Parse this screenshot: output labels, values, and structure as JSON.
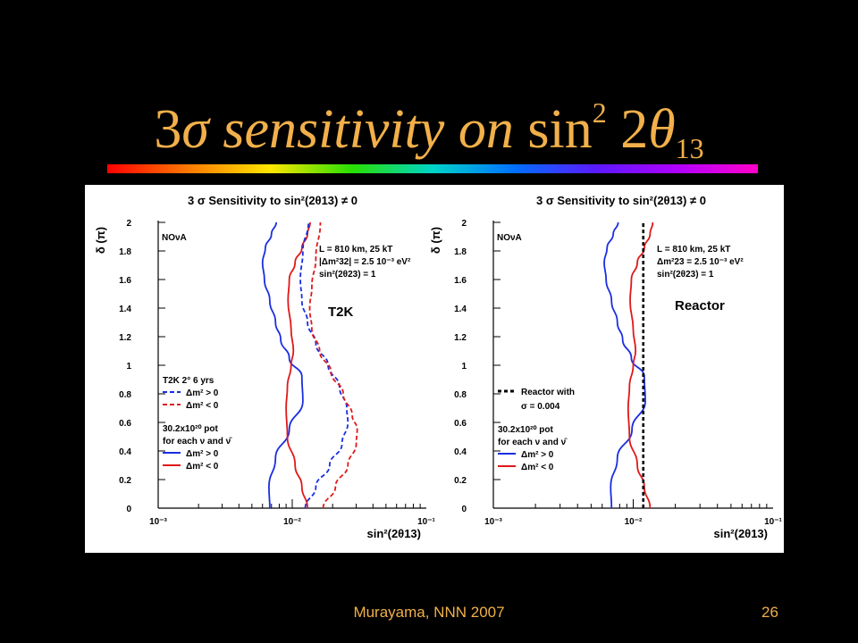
{
  "slide": {
    "title_prefix": "3",
    "title_sigma": "σ",
    "title_italic": " sensitivity on ",
    "title_sin": "sin",
    "title_sup": "2",
    "title_two": " 2",
    "title_theta": "θ",
    "title_sub": "13",
    "footer_credit": "Murayama, NNN 2007",
    "page_number": "26"
  },
  "colors": {
    "background": "#000000",
    "title": "#f2b04a",
    "blue": "#1a2ee0",
    "red": "#e01818"
  },
  "chart_data": [
    {
      "type": "line",
      "title": "3 σ Sensitivity to sin²(2θ13) ≠ 0",
      "xlabel": "sin²(2θ13)",
      "ylabel": "δ (π)",
      "xscale": "log",
      "xlim": [
        0.001,
        0.1
      ],
      "ylim": [
        0,
        2
      ],
      "xticks": [
        "10⁻³",
        "10⁻²",
        "10⁻¹"
      ],
      "yticks": [
        "0",
        "0.2",
        "0.4",
        "0.6",
        "0.8",
        "1",
        "1.2",
        "1.4",
        "1.6",
        "1.8",
        "2"
      ],
      "experiment_label": "NOνA",
      "params": [
        "L = 810 km, 25 kT",
        "|Δm²32| = 2.5 10⁻³ eV²",
        "sin²(2θ23) = 1"
      ],
      "annotation": "T2K",
      "legend": [
        {
          "heading": "T2K 2° 6 yrs",
          "entries": [
            {
              "label": "Δm² > 0",
              "color": "#1a2ee0",
              "style": "dashed"
            },
            {
              "label": "Δm² < 0",
              "color": "#e01818",
              "style": "dashed"
            }
          ]
        },
        {
          "heading": "30.2x10²⁰ pot",
          "subheading": "for each ν and ν̄",
          "entries": [
            {
              "label": "Δm² > 0",
              "color": "#1a2ee0",
              "style": "solid"
            },
            {
              "label": "Δm² < 0",
              "color": "#e01818",
              "style": "solid"
            }
          ]
        }
      ],
      "series": [
        {
          "name": "NOνA Δm² > 0",
          "color": "#1a2ee0",
          "style": "solid",
          "x": [
            0.0068,
            0.0067,
            0.0075,
            0.0095,
            0.012,
            0.0118,
            0.0095,
            0.0082,
            0.0075,
            0.0068,
            0.0062,
            0.006,
            0.0063,
            0.007,
            0.0076
          ],
          "y": [
            0,
            0.15,
            0.35,
            0.55,
            0.75,
            0.92,
            1.05,
            1.18,
            1.3,
            1.45,
            1.6,
            1.72,
            1.82,
            1.92,
            2
          ]
        },
        {
          "name": "NOνA Δm² < 0",
          "color": "#e01818",
          "style": "solid",
          "x": [
            0.013,
            0.0118,
            0.0105,
            0.0092,
            0.009,
            0.0092,
            0.0098,
            0.0102,
            0.0098,
            0.0093,
            0.0095,
            0.0105,
            0.0118,
            0.013,
            0.0136
          ],
          "y": [
            0,
            0.15,
            0.3,
            0.5,
            0.7,
            0.85,
            1.0,
            1.1,
            1.25,
            1.45,
            1.6,
            1.72,
            1.82,
            1.92,
            2
          ]
        },
        {
          "name": "T2K Δm² > 0",
          "color": "#1a2ee0",
          "style": "dashed",
          "x": [
            0.0125,
            0.015,
            0.019,
            0.0235,
            0.026,
            0.0255,
            0.0225,
            0.0185,
            0.015,
            0.013,
            0.0118,
            0.0115,
            0.012,
            0.0132
          ],
          "y": [
            0,
            0.15,
            0.3,
            0.45,
            0.6,
            0.7,
            0.85,
            1.0,
            1.15,
            1.3,
            1.45,
            1.6,
            1.8,
            2
          ]
        },
        {
          "name": "T2K Δm² < 0",
          "color": "#e01818",
          "style": "dashed",
          "x": [
            0.017,
            0.021,
            0.026,
            0.03,
            0.0305,
            0.028,
            0.024,
            0.0195,
            0.016,
            0.014,
            0.0135,
            0.014,
            0.015,
            0.0162
          ],
          "y": [
            0,
            0.15,
            0.3,
            0.45,
            0.55,
            0.65,
            0.8,
            0.95,
            1.1,
            1.25,
            1.4,
            1.55,
            1.75,
            2
          ]
        }
      ]
    },
    {
      "type": "line",
      "title": "3 σ Sensitivity to sin²(2θ13) ≠ 0",
      "xlabel": "sin²(2θ13)",
      "ylabel": "δ (π)",
      "xscale": "log",
      "xlim": [
        0.001,
        0.1
      ],
      "ylim": [
        0,
        2
      ],
      "xticks": [
        "10⁻³",
        "10⁻²",
        "10⁻¹"
      ],
      "yticks": [
        "0",
        "0.2",
        "0.4",
        "0.6",
        "0.8",
        "1",
        "1.2",
        "1.4",
        "1.6",
        "1.8",
        "2"
      ],
      "experiment_label": "NOνA",
      "params": [
        "L = 810 km, 25 kT",
        "Δm²23 = 2.5 10⁻³ eV²",
        "sin²(2θ23) = 1"
      ],
      "annotation": "Reactor",
      "legend": [
        {
          "heading": "",
          "entries": [
            {
              "label": "Reactor with",
              "label2": "σ = 0.004",
              "color": "#000000",
              "style": "dotted"
            }
          ]
        },
        {
          "heading": "30.2x10²⁰ pot",
          "subheading": "for each ν and ν̄",
          "entries": [
            {
              "label": "Δm² > 0",
              "color": "#1a2ee0",
              "style": "solid"
            },
            {
              "label": "Δm² < 0",
              "color": "#e01818",
              "style": "solid"
            }
          ]
        }
      ],
      "series": [
        {
          "name": "NOνA Δm² > 0",
          "color": "#1a2ee0",
          "style": "solid",
          "x": [
            0.007,
            0.0069,
            0.0077,
            0.0098,
            0.0122,
            0.012,
            0.0097,
            0.0084,
            0.0077,
            0.007,
            0.0064,
            0.0062,
            0.0065,
            0.0072,
            0.0078
          ],
          "y": [
            0,
            0.15,
            0.35,
            0.55,
            0.75,
            0.92,
            1.05,
            1.18,
            1.3,
            1.45,
            1.6,
            1.72,
            1.82,
            1.92,
            2
          ]
        },
        {
          "name": "NOνA Δm² < 0",
          "color": "#e01818",
          "style": "solid",
          "x": [
            0.0132,
            0.012,
            0.0107,
            0.0094,
            0.0092,
            0.0094,
            0.01,
            0.0104,
            0.01,
            0.0095,
            0.0097,
            0.0107,
            0.012,
            0.0132,
            0.0138
          ],
          "y": [
            0,
            0.15,
            0.3,
            0.5,
            0.7,
            0.85,
            1.0,
            1.1,
            1.25,
            1.45,
            1.6,
            1.72,
            1.82,
            1.92,
            2
          ]
        },
        {
          "name": "Reactor with σ = 0.004",
          "color": "#000000",
          "style": "dotted",
          "x": [
            0.0118,
            0.0118
          ],
          "y": [
            0,
            2
          ]
        }
      ]
    }
  ]
}
